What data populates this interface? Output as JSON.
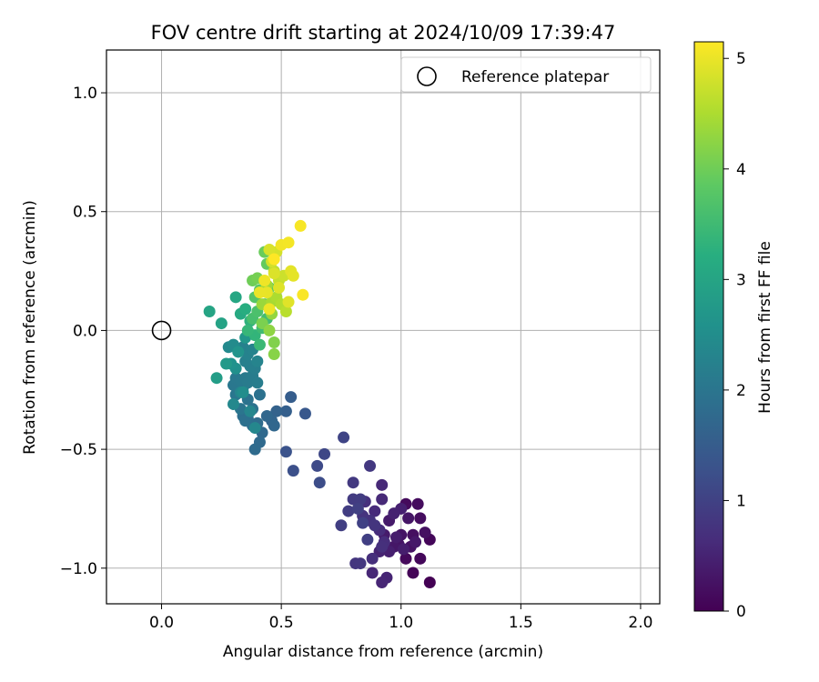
{
  "chart_data": {
    "type": "scatter",
    "title": "FOV centre drift starting at 2024/10/09 17:39:47",
    "xlabel": "Angular distance from reference (arcmin)",
    "ylabel": "Rotation from reference (arcmin)",
    "xlim": [
      -0.23,
      2.08
    ],
    "ylim": [
      -1.15,
      1.18
    ],
    "xticks": [
      0.0,
      0.5,
      1.0,
      1.5,
      2.0
    ],
    "xtick_labels": [
      "0.0",
      "0.5",
      "1.0",
      "1.5",
      "2.0"
    ],
    "yticks": [
      -1.0,
      -0.5,
      0.0,
      0.5,
      1.0
    ],
    "ytick_labels": [
      "−1.0",
      "−0.5",
      "0.0",
      "0.5",
      "1.0"
    ],
    "grid": true,
    "legend": {
      "position": "top-right",
      "entries": [
        "Reference platepar"
      ]
    },
    "reference_point": {
      "x": 0.0,
      "y": 0.0
    },
    "colorbar": {
      "label": "Hours from first FF file",
      "range": [
        0,
        5.15
      ],
      "ticks": [
        0,
        1,
        2,
        3,
        4,
        5
      ],
      "tick_labels": [
        "0",
        "1",
        "2",
        "3",
        "4",
        "5"
      ],
      "colormap": "viridis"
    },
    "points": [
      {
        "x": 1.12,
        "y": -1.06,
        "h": 0.0
      },
      {
        "x": 1.05,
        "y": -1.02,
        "h": 0.05
      },
      {
        "x": 1.12,
        "y": -0.88,
        "h": 0.08
      },
      {
        "x": 1.08,
        "y": -0.96,
        "h": 0.1
      },
      {
        "x": 1.02,
        "y": -0.96,
        "h": 0.12
      },
      {
        "x": 1.02,
        "y": -0.73,
        "h": 0.14
      },
      {
        "x": 1.07,
        "y": -0.73,
        "h": 0.16
      },
      {
        "x": 1.08,
        "y": -0.79,
        "h": 0.18
      },
      {
        "x": 1.05,
        "y": -0.86,
        "h": 0.2
      },
      {
        "x": 1.1,
        "y": -0.85,
        "h": 0.22
      },
      {
        "x": 1.04,
        "y": -0.91,
        "h": 0.24
      },
      {
        "x": 1.0,
        "y": -0.86,
        "h": 0.26
      },
      {
        "x": 0.99,
        "y": -0.9,
        "h": 0.28
      },
      {
        "x": 1.03,
        "y": -0.79,
        "h": 0.3
      },
      {
        "x": 0.97,
        "y": -0.91,
        "h": 0.32
      },
      {
        "x": 1.06,
        "y": -0.89,
        "h": 0.34
      },
      {
        "x": 0.95,
        "y": -0.8,
        "h": 0.36
      },
      {
        "x": 0.93,
        "y": -0.86,
        "h": 0.38
      },
      {
        "x": 0.98,
        "y": -0.87,
        "h": 0.4
      },
      {
        "x": 1.01,
        "y": -0.92,
        "h": 0.42
      },
      {
        "x": 0.95,
        "y": -0.93,
        "h": 0.44
      },
      {
        "x": 1.0,
        "y": -0.75,
        "h": 0.46
      },
      {
        "x": 0.97,
        "y": -0.77,
        "h": 0.48
      },
      {
        "x": 0.91,
        "y": -0.93,
        "h": 0.5
      },
      {
        "x": 0.94,
        "y": -1.04,
        "h": 0.52
      },
      {
        "x": 0.92,
        "y": -1.06,
        "h": 0.54
      },
      {
        "x": 0.88,
        "y": -1.02,
        "h": 0.56
      },
      {
        "x": 0.92,
        "y": -0.65,
        "h": 0.58
      },
      {
        "x": 0.92,
        "y": -0.71,
        "h": 0.6
      },
      {
        "x": 0.89,
        "y": -0.76,
        "h": 0.62
      },
      {
        "x": 0.91,
        "y": -0.84,
        "h": 0.64
      },
      {
        "x": 0.93,
        "y": -0.89,
        "h": 0.66
      },
      {
        "x": 0.88,
        "y": -0.96,
        "h": 0.68
      },
      {
        "x": 0.92,
        "y": -0.91,
        "h": 0.7
      },
      {
        "x": 0.85,
        "y": -0.72,
        "h": 0.72
      },
      {
        "x": 0.87,
        "y": -0.8,
        "h": 0.74
      },
      {
        "x": 0.84,
        "y": -0.78,
        "h": 0.76
      },
      {
        "x": 0.89,
        "y": -0.82,
        "h": 0.78
      },
      {
        "x": 0.81,
        "y": -0.98,
        "h": 0.8
      },
      {
        "x": 0.83,
        "y": -0.98,
        "h": 0.82
      },
      {
        "x": 0.87,
        "y": -0.57,
        "h": 0.84
      },
      {
        "x": 0.8,
        "y": -0.64,
        "h": 0.86
      },
      {
        "x": 0.8,
        "y": -0.71,
        "h": 0.88
      },
      {
        "x": 0.83,
        "y": -0.71,
        "h": 0.9
      },
      {
        "x": 0.78,
        "y": -0.76,
        "h": 0.92
      },
      {
        "x": 0.75,
        "y": -0.82,
        "h": 0.94
      },
      {
        "x": 0.86,
        "y": -0.88,
        "h": 0.96
      },
      {
        "x": 0.82,
        "y": -0.75,
        "h": 0.98
      },
      {
        "x": 0.84,
        "y": -0.81,
        "h": 1.0
      },
      {
        "x": 0.76,
        "y": -0.45,
        "h": 1.05
      },
      {
        "x": 0.68,
        "y": -0.52,
        "h": 1.1
      },
      {
        "x": 0.65,
        "y": -0.57,
        "h": 1.15
      },
      {
        "x": 0.66,
        "y": -0.64,
        "h": 1.2
      },
      {
        "x": 0.55,
        "y": -0.59,
        "h": 1.25
      },
      {
        "x": 0.52,
        "y": -0.51,
        "h": 1.3
      },
      {
        "x": 0.6,
        "y": -0.35,
        "h": 1.4
      },
      {
        "x": 0.54,
        "y": -0.28,
        "h": 1.5
      },
      {
        "x": 0.52,
        "y": -0.34,
        "h": 1.55
      },
      {
        "x": 0.48,
        "y": -0.34,
        "h": 1.6
      },
      {
        "x": 0.46,
        "y": -0.38,
        "h": 1.65
      },
      {
        "x": 0.47,
        "y": -0.4,
        "h": 1.7
      },
      {
        "x": 0.44,
        "y": -0.36,
        "h": 1.72
      },
      {
        "x": 0.42,
        "y": -0.43,
        "h": 1.75
      },
      {
        "x": 0.41,
        "y": -0.47,
        "h": 1.78
      },
      {
        "x": 0.39,
        "y": -0.5,
        "h": 1.8
      },
      {
        "x": 0.4,
        "y": -0.39,
        "h": 1.82
      },
      {
        "x": 0.38,
        "y": -0.4,
        "h": 1.84
      },
      {
        "x": 0.36,
        "y": -0.37,
        "h": 1.86
      },
      {
        "x": 0.34,
        "y": -0.36,
        "h": 1.88
      },
      {
        "x": 0.35,
        "y": -0.38,
        "h": 1.9
      },
      {
        "x": 0.41,
        "y": -0.27,
        "h": 1.92
      },
      {
        "x": 0.38,
        "y": -0.33,
        "h": 1.94
      },
      {
        "x": 0.36,
        "y": -0.29,
        "h": 1.96
      },
      {
        "x": 0.34,
        "y": -0.24,
        "h": 1.98
      },
      {
        "x": 0.33,
        "y": -0.33,
        "h": 2.0
      },
      {
        "x": 0.31,
        "y": -0.27,
        "h": 2.02
      },
      {
        "x": 0.3,
        "y": -0.23,
        "h": 2.04
      },
      {
        "x": 0.31,
        "y": -0.2,
        "h": 2.06
      },
      {
        "x": 0.33,
        "y": -0.21,
        "h": 2.08
      },
      {
        "x": 0.35,
        "y": -0.2,
        "h": 2.1
      },
      {
        "x": 0.36,
        "y": -0.22,
        "h": 2.12
      },
      {
        "x": 0.38,
        "y": -0.19,
        "h": 2.14
      },
      {
        "x": 0.4,
        "y": -0.22,
        "h": 2.16
      },
      {
        "x": 0.39,
        "y": -0.16,
        "h": 2.18
      },
      {
        "x": 0.37,
        "y": -0.15,
        "h": 2.2
      },
      {
        "x": 0.35,
        "y": -0.13,
        "h": 2.22
      },
      {
        "x": 0.34,
        "y": -0.07,
        "h": 2.24
      },
      {
        "x": 0.36,
        "y": -0.1,
        "h": 2.26
      },
      {
        "x": 0.38,
        "y": -0.08,
        "h": 2.28
      },
      {
        "x": 0.4,
        "y": -0.13,
        "h": 2.3
      },
      {
        "x": 0.33,
        "y": -0.26,
        "h": 2.32
      },
      {
        "x": 0.37,
        "y": -0.34,
        "h": 2.34
      },
      {
        "x": 0.39,
        "y": -0.41,
        "h": 2.36
      },
      {
        "x": 0.3,
        "y": -0.31,
        "h": 2.38
      },
      {
        "x": 0.28,
        "y": -0.07,
        "h": 2.4
      },
      {
        "x": 0.3,
        "y": -0.06,
        "h": 2.45
      },
      {
        "x": 0.34,
        "y": -0.26,
        "h": 2.5
      },
      {
        "x": 0.31,
        "y": -0.16,
        "h": 2.55
      },
      {
        "x": 0.29,
        "y": -0.14,
        "h": 2.6
      },
      {
        "x": 0.32,
        "y": -0.09,
        "h": 2.65
      },
      {
        "x": 0.35,
        "y": -0.03,
        "h": 2.7
      },
      {
        "x": 0.27,
        "y": -0.14,
        "h": 2.75
      },
      {
        "x": 0.23,
        "y": -0.2,
        "h": 2.85
      },
      {
        "x": 0.25,
        "y": 0.03,
        "h": 2.95
      },
      {
        "x": 0.2,
        "y": 0.08,
        "h": 3.0
      },
      {
        "x": 0.31,
        "y": 0.14,
        "h": 3.05
      },
      {
        "x": 0.33,
        "y": 0.07,
        "h": 3.1
      },
      {
        "x": 0.35,
        "y": 0.09,
        "h": 3.2
      },
      {
        "x": 0.37,
        "y": 0.04,
        "h": 3.3
      },
      {
        "x": 0.39,
        "y": -0.02,
        "h": 3.35
      },
      {
        "x": 0.36,
        "y": 0.0,
        "h": 3.4
      },
      {
        "x": 0.41,
        "y": -0.06,
        "h": 3.45
      },
      {
        "x": 0.42,
        "y": 0.01,
        "h": 3.5
      },
      {
        "x": 0.44,
        "y": 0.05,
        "h": 3.55
      },
      {
        "x": 0.38,
        "y": 0.05,
        "h": 3.6
      },
      {
        "x": 0.4,
        "y": 0.08,
        "h": 3.65
      },
      {
        "x": 0.43,
        "y": 0.11,
        "h": 3.7
      },
      {
        "x": 0.39,
        "y": 0.14,
        "h": 3.75
      },
      {
        "x": 0.41,
        "y": 0.17,
        "h": 3.8
      },
      {
        "x": 0.45,
        "y": 0.18,
        "h": 3.85
      },
      {
        "x": 0.44,
        "y": 0.28,
        "h": 3.9
      },
      {
        "x": 0.43,
        "y": 0.33,
        "h": 3.95
      },
      {
        "x": 0.38,
        "y": 0.21,
        "h": 4.0
      },
      {
        "x": 0.4,
        "y": 0.22,
        "h": 4.05
      },
      {
        "x": 0.42,
        "y": 0.03,
        "h": 4.1
      },
      {
        "x": 0.47,
        "y": -0.05,
        "h": 4.15
      },
      {
        "x": 0.47,
        "y": -0.1,
        "h": 4.2
      },
      {
        "x": 0.45,
        "y": 0.0,
        "h": 4.25
      },
      {
        "x": 0.46,
        "y": 0.07,
        "h": 4.3
      },
      {
        "x": 0.42,
        "y": 0.11,
        "h": 4.35
      },
      {
        "x": 0.44,
        "y": 0.19,
        "h": 4.4
      },
      {
        "x": 0.46,
        "y": 0.12,
        "h": 4.45
      },
      {
        "x": 0.48,
        "y": 0.14,
        "h": 4.5
      },
      {
        "x": 0.5,
        "y": 0.11,
        "h": 4.55
      },
      {
        "x": 0.52,
        "y": 0.08,
        "h": 4.6
      },
      {
        "x": 0.47,
        "y": 0.25,
        "h": 4.65
      },
      {
        "x": 0.49,
        "y": 0.21,
        "h": 4.7
      },
      {
        "x": 0.51,
        "y": 0.23,
        "h": 4.75
      },
      {
        "x": 0.46,
        "y": 0.29,
        "h": 4.8
      },
      {
        "x": 0.48,
        "y": 0.33,
        "h": 4.82
      },
      {
        "x": 0.45,
        "y": 0.34,
        "h": 4.85
      },
      {
        "x": 0.47,
        "y": 0.24,
        "h": 4.88
      },
      {
        "x": 0.49,
        "y": 0.18,
        "h": 4.9
      },
      {
        "x": 0.53,
        "y": 0.12,
        "h": 4.92
      },
      {
        "x": 0.54,
        "y": 0.25,
        "h": 4.94
      },
      {
        "x": 0.55,
        "y": 0.23,
        "h": 4.96
      },
      {
        "x": 0.44,
        "y": 0.16,
        "h": 4.98
      },
      {
        "x": 0.41,
        "y": 0.16,
        "h": 5.0
      },
      {
        "x": 0.45,
        "y": 0.09,
        "h": 5.02
      },
      {
        "x": 0.43,
        "y": 0.21,
        "h": 5.04
      },
      {
        "x": 0.5,
        "y": 0.36,
        "h": 5.06
      },
      {
        "x": 0.53,
        "y": 0.37,
        "h": 5.08
      },
      {
        "x": 0.58,
        "y": 0.44,
        "h": 5.1
      },
      {
        "x": 0.59,
        "y": 0.15,
        "h": 5.12
      },
      {
        "x": 0.47,
        "y": 0.3,
        "h": 5.15
      }
    ]
  }
}
